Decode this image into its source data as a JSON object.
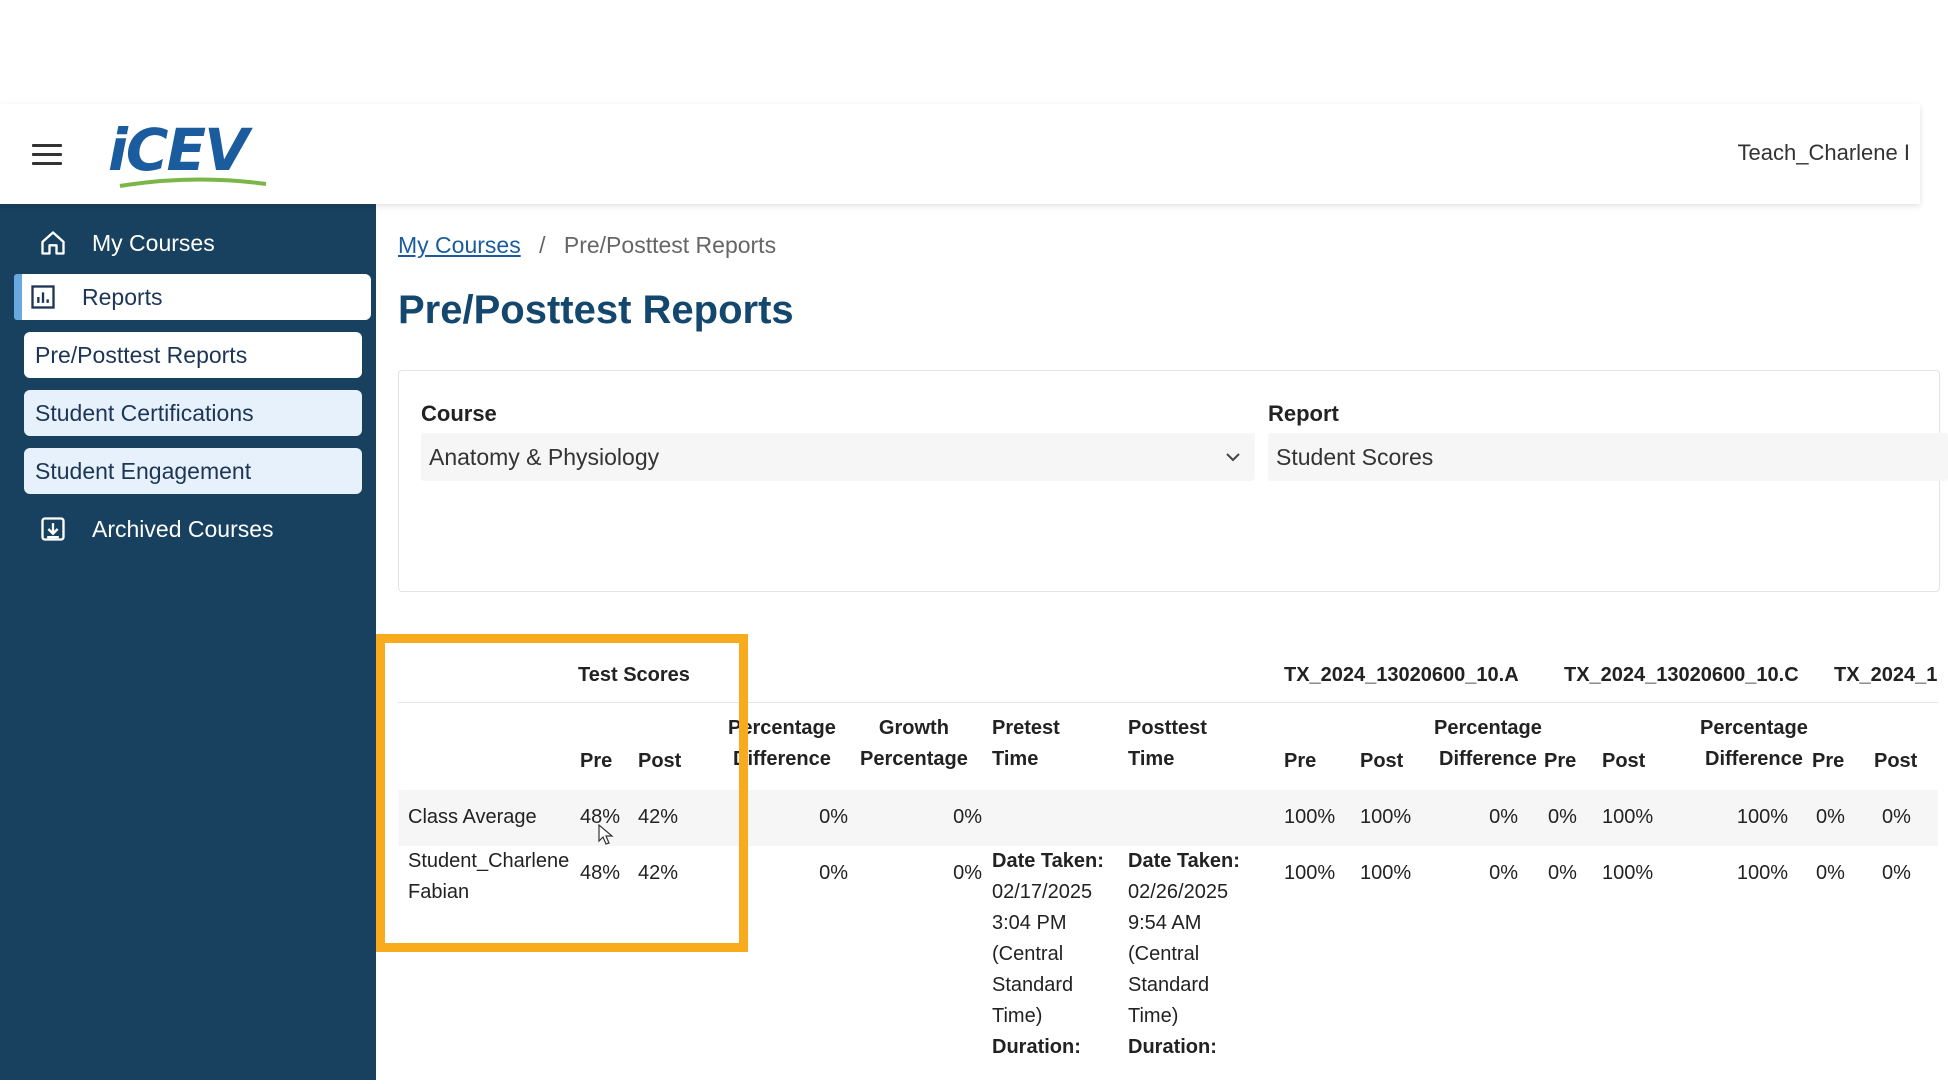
{
  "header": {
    "logo_text": "iCEV",
    "user_name": "Teach_Charlene I"
  },
  "sidebar": {
    "items": [
      {
        "label": "My Courses",
        "icon": "home-icon"
      },
      {
        "label": "Reports",
        "icon": "chart-icon"
      },
      {
        "label": "Pre/Posttest Reports"
      },
      {
        "label": "Student Certifications"
      },
      {
        "label": "Student Engagement"
      },
      {
        "label": "Archived Courses",
        "icon": "archive-icon"
      }
    ]
  },
  "breadcrumb": {
    "link": "My Courses",
    "separator": "/",
    "current": "Pre/Posttest Reports"
  },
  "page_title": "Pre/Posttest Reports",
  "filters": {
    "course_label": "Course",
    "course_value": "Anatomy & Physiology",
    "report_label": "Report",
    "report_value": "Student Scores"
  },
  "table": {
    "group_headers": {
      "test_scores": "Test Scores",
      "std1": "TX_2024_13020600_10.A",
      "std2": "TX_2024_13020600_10.C",
      "std3": "TX_2024_1"
    },
    "columns": {
      "pre": "Pre",
      "post": "Post",
      "pct_diff_1": "Percentage",
      "pct_diff_2": "Difference",
      "growth_1": "Growth",
      "growth_2": "Percentage",
      "pretest_time_1": "Pretest",
      "pretest_time_2": "Time",
      "posttest_time_1": "Posttest",
      "posttest_time_2": "Time"
    },
    "class_average": {
      "name": "Class Average",
      "pre": "48%",
      "post": "42%",
      "pct_diff": "0%",
      "growth": "0%",
      "s1_pre": "100%",
      "s1_post": "100%",
      "s1_diff": "0%",
      "s2_pre": "0%",
      "s2_post": "100%",
      "s2_diff": "100%",
      "s3_pre": "0%",
      "s3_post": "0%"
    },
    "student": {
      "name_1": "Student_Charlene",
      "name_2": "Fabian",
      "pre": "48%",
      "post": "42%",
      "pct_diff": "0%",
      "growth": "0%",
      "pretest_time_label": "Date Taken:",
      "pretest_date": "02/17/2025",
      "pretest_clock": "3:04 PM",
      "pretest_tz_1": "(Central",
      "pretest_tz_2": "Standard",
      "pretest_tz_3": "Time)",
      "pretest_duration_label": "Duration:",
      "posttest_time_label": "Date Taken:",
      "posttest_date": "02/26/2025",
      "posttest_clock": "9:54 AM",
      "posttest_tz_1": "(Central",
      "posttest_tz_2": "Standard",
      "posttest_tz_3": "Time)",
      "posttest_duration_label": "Duration:",
      "s1_pre": "100%",
      "s1_post": "100%",
      "s1_diff": "0%",
      "s2_pre": "0%",
      "s2_post": "100%",
      "s2_diff": "100%",
      "s3_pre": "0%",
      "s3_post": "0%"
    }
  },
  "colors": {
    "sidebar_bg": "#17415e",
    "title": "#14476e",
    "link": "#1a5c9e",
    "highlight": "#f8ab1c"
  }
}
